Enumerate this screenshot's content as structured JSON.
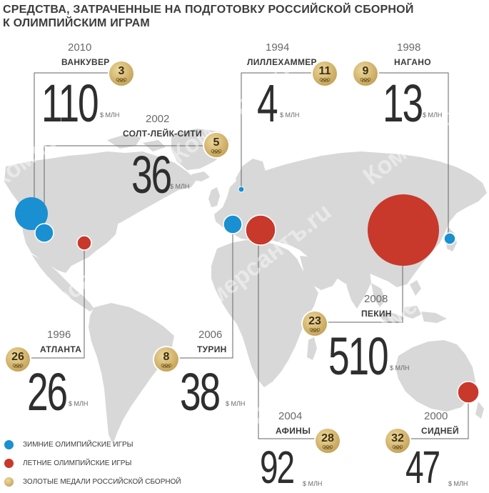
{
  "title": {
    "line1": "СРЕДСТВА, ЗАТРАЧЕННЫЕ НА ПОДГОТОВКУ РОССИЙСКОЙ СБОРНОЙ",
    "line2": "К ОЛИМПИЙСКИМ ИГРАМ"
  },
  "unit": "$ МЛН",
  "colors": {
    "winter": "#1a8fd1",
    "summer": "#c8382b",
    "gold": "#d6b873",
    "map": "#d8d8d8",
    "leader": "#666666"
  },
  "olympics": [
    {
      "key": "vancouver",
      "year": "2010",
      "city": "ВАНКУВЕР",
      "amount": "110",
      "medals": "3",
      "season": "winter"
    },
    {
      "key": "saltlake",
      "year": "2002",
      "city": "СОЛТ-ЛЕЙК-СИТИ",
      "amount": "36",
      "medals": "5",
      "season": "winter"
    },
    {
      "key": "lillehammer",
      "year": "1994",
      "city": "ЛИЛЛЕХАММЕР",
      "amount": "4",
      "medals": "11",
      "season": "winter"
    },
    {
      "key": "nagano",
      "year": "1998",
      "city": "НАГАНО",
      "amount": "13",
      "medals": "9",
      "season": "winter"
    },
    {
      "key": "beijing",
      "year": "2008",
      "city": "ПЕКИН",
      "amount": "510",
      "medals": "23",
      "season": "summer"
    },
    {
      "key": "atlanta",
      "year": "1996",
      "city": "АТЛАНТА",
      "amount": "26",
      "medals": "26",
      "season": "summer"
    },
    {
      "key": "turin",
      "year": "2006",
      "city": "ТУРИН",
      "amount": "38",
      "medals": "8",
      "season": "winter"
    },
    {
      "key": "athens",
      "year": "2004",
      "city": "АФИНЫ",
      "amount": "92",
      "medals": "28",
      "season": "summer"
    },
    {
      "key": "sydney",
      "year": "2000",
      "city": "СИДНЕЙ",
      "amount": "47",
      "medals": "32",
      "season": "summer"
    }
  ],
  "legend": {
    "winter": "ЗИМНИЕ ОЛИМПИЙСКИЕ ИГРЫ",
    "summer": "ЛЕТНИЕ ОЛИМПИЙСКИЕ ИГРЫ",
    "medals": "ЗОЛОТЫЕ МЕДАЛИ РОССИЙСКОЙ СБОРНОЙ"
  },
  "watermark": "Коммерсантъ.ru"
}
